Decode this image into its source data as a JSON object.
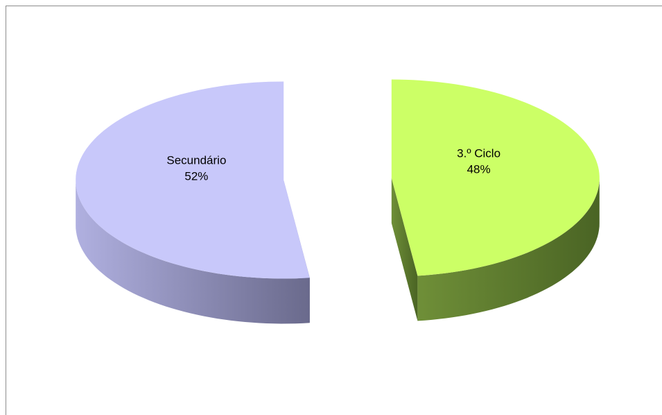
{
  "chart_data": {
    "type": "pie3d",
    "categories": [
      "3.º Ciclo",
      "Secundário"
    ],
    "values": [
      48,
      52
    ],
    "value_labels": [
      "48%",
      "52%"
    ],
    "colors": [
      "#ccff66",
      "#c8c8fa"
    ]
  }
}
